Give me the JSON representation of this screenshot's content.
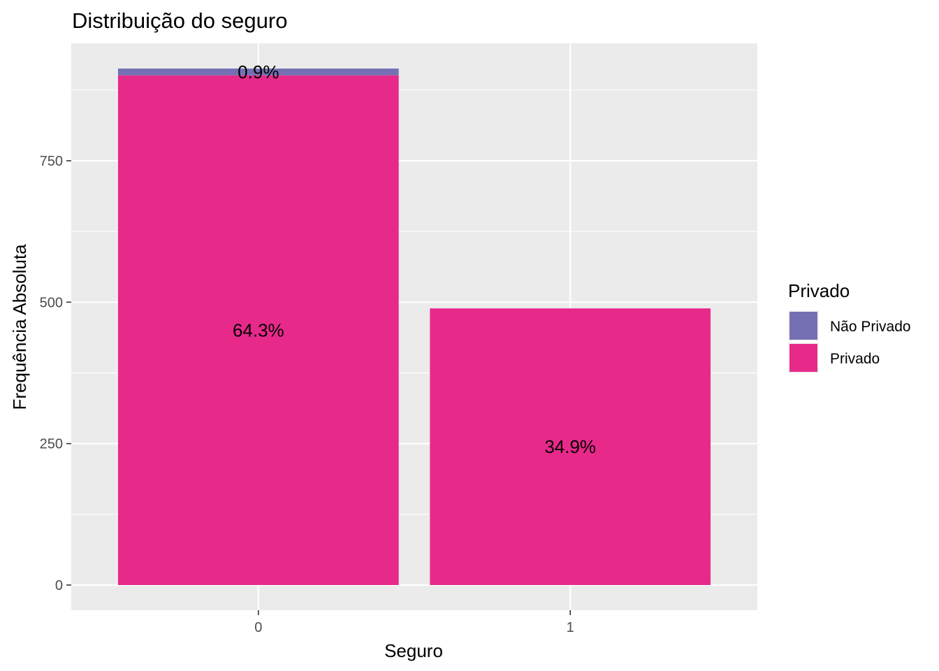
{
  "chart_data": {
    "type": "bar",
    "stacked": true,
    "title": "Distribuição do seguro",
    "xlabel": "Seguro",
    "ylabel": "Frequência Absoluta",
    "categories": [
      "0",
      "1"
    ],
    "ylim": [
      0,
      960
    ],
    "yticks": [
      0,
      250,
      500,
      750
    ],
    "grid": true,
    "legend": {
      "title": "Privado",
      "position": "right",
      "entries": [
        "Não Privado",
        "Privado"
      ]
    },
    "series": [
      {
        "name": "Privado",
        "color": "#E7298A",
        "values": [
          901,
          489
        ],
        "labels": [
          "64.3%",
          "34.9%"
        ]
      },
      {
        "name": "Não Privado",
        "color": "#7570B3",
        "values": [
          12,
          0
        ],
        "labels": [
          "0.9%",
          ""
        ]
      }
    ]
  }
}
